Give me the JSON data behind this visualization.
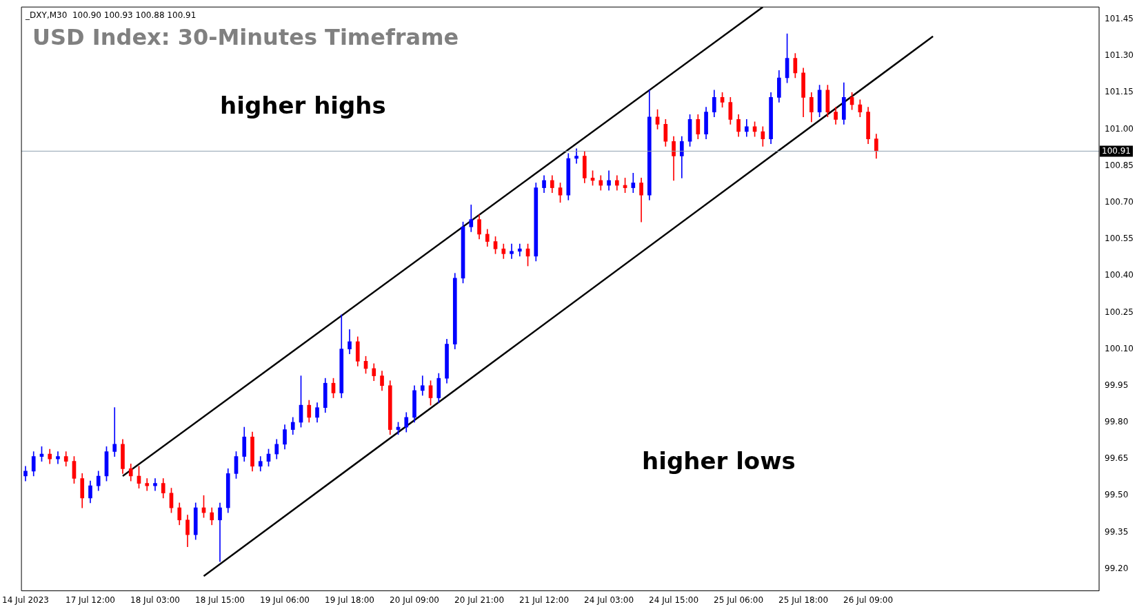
{
  "chart_data": {
    "type": "candlestick",
    "title": "USD Index: 30-Minutes Timeframe",
    "subtitle": "_DXY,M30  100.90 100.93 100.88 100.91",
    "categories": [
      "14 Jul 2023",
      null,
      null,
      null,
      null,
      null,
      null,
      null,
      "17 Jul 12:00",
      null,
      null,
      null,
      null,
      null,
      null,
      null,
      "18 Jul 03:00",
      null,
      null,
      null,
      null,
      null,
      null,
      null,
      "18 Jul 15:00",
      null,
      null,
      null,
      null,
      null,
      null,
      null,
      "19 Jul 06:00",
      null,
      null,
      null,
      null,
      null,
      null,
      null,
      "19 Jul 18:00",
      null,
      null,
      null,
      null,
      null,
      null,
      null,
      "20 Jul 09:00",
      null,
      null,
      null,
      null,
      null,
      null,
      null,
      "20 Jul 21:00",
      null,
      null,
      null,
      null,
      null,
      null,
      null,
      "21 Jul 12:00",
      null,
      null,
      null,
      null,
      null,
      null,
      null,
      "24 Jul 03:00",
      null,
      null,
      null,
      null,
      null,
      null,
      null,
      "24 Jul 15:00",
      null,
      null,
      null,
      null,
      null,
      null,
      null,
      "25 Jul 06:00",
      null,
      null,
      null,
      null,
      null,
      null,
      null,
      "25 Jul 18:00",
      null,
      null,
      null,
      null,
      null,
      null,
      null,
      "26 Jul 09:00",
      null,
      null,
      null,
      null,
      null,
      null,
      null,
      null,
      null,
      null,
      null,
      null,
      null,
      null,
      null,
      null,
      null,
      null,
      null,
      null,
      null,
      null,
      null,
      null,
      null,
      null,
      null,
      null
    ],
    "ohlc": [
      [
        99.58,
        99.62,
        99.56,
        99.6
      ],
      [
        99.6,
        99.68,
        99.58,
        99.66
      ],
      [
        99.66,
        99.7,
        99.64,
        99.67
      ],
      [
        99.67,
        99.69,
        99.63,
        99.65
      ],
      [
        99.65,
        99.68,
        99.63,
        99.66
      ],
      [
        99.66,
        99.68,
        99.62,
        99.64
      ],
      [
        99.64,
        99.66,
        99.55,
        99.57
      ],
      [
        99.57,
        99.59,
        99.45,
        99.49
      ],
      [
        99.49,
        99.56,
        99.47,
        99.54
      ],
      [
        99.54,
        99.6,
        99.52,
        99.58
      ],
      [
        99.58,
        99.7,
        99.56,
        99.68
      ],
      [
        99.68,
        99.86,
        99.66,
        99.71
      ],
      [
        99.71,
        99.73,
        99.59,
        99.61
      ],
      [
        99.61,
        99.63,
        99.56,
        99.58
      ],
      [
        99.58,
        99.62,
        99.53,
        99.55
      ],
      [
        99.55,
        99.57,
        99.52,
        99.54
      ],
      [
        99.54,
        99.57,
        99.52,
        99.55
      ],
      [
        99.55,
        99.57,
        99.49,
        99.51
      ],
      [
        99.51,
        99.53,
        99.43,
        99.45
      ],
      [
        99.45,
        99.47,
        99.38,
        99.4
      ],
      [
        99.4,
        99.42,
        99.29,
        99.34
      ],
      [
        99.34,
        99.47,
        99.32,
        99.45
      ],
      [
        99.45,
        99.5,
        99.41,
        99.43
      ],
      [
        99.43,
        99.45,
        99.38,
        99.4
      ],
      [
        99.4,
        99.47,
        99.23,
        99.45
      ],
      [
        99.45,
        99.61,
        99.43,
        99.59
      ],
      [
        99.59,
        99.68,
        99.57,
        99.66
      ],
      [
        99.66,
        99.78,
        99.64,
        99.74
      ],
      [
        99.74,
        99.76,
        99.6,
        99.62
      ],
      [
        99.62,
        99.66,
        99.6,
        99.64
      ],
      [
        99.64,
        99.69,
        99.62,
        99.67
      ],
      [
        99.67,
        99.73,
        99.65,
        99.71
      ],
      [
        99.71,
        99.79,
        99.69,
        99.77
      ],
      [
        99.77,
        99.82,
        99.75,
        99.8
      ],
      [
        99.8,
        99.99,
        99.78,
        99.87
      ],
      [
        99.87,
        99.89,
        99.8,
        99.82
      ],
      [
        99.82,
        99.88,
        99.8,
        99.86
      ],
      [
        99.86,
        99.98,
        99.84,
        99.96
      ],
      [
        99.96,
        99.98,
        99.9,
        99.92
      ],
      [
        99.92,
        100.24,
        99.9,
        100.1
      ],
      [
        100.1,
        100.18,
        100.08,
        100.13
      ],
      [
        100.13,
        100.15,
        100.03,
        100.05
      ],
      [
        100.05,
        100.07,
        100.0,
        100.02
      ],
      [
        100.02,
        100.04,
        99.97,
        99.99
      ],
      [
        99.99,
        100.01,
        99.93,
        99.95
      ],
      [
        99.95,
        99.97,
        99.75,
        99.77
      ],
      [
        99.77,
        99.8,
        99.75,
        99.78
      ],
      [
        99.78,
        99.84,
        99.76,
        99.82
      ],
      [
        99.82,
        99.95,
        99.8,
        99.93
      ],
      [
        99.93,
        99.99,
        99.91,
        99.95
      ],
      [
        99.95,
        99.97,
        99.87,
        99.9
      ],
      [
        99.9,
        100.0,
        99.88,
        99.98
      ],
      [
        99.98,
        100.14,
        99.96,
        100.12
      ],
      [
        100.12,
        100.41,
        100.1,
        100.39
      ],
      [
        100.39,
        100.62,
        100.37,
        100.6
      ],
      [
        100.6,
        100.69,
        100.58,
        100.63
      ],
      [
        100.63,
        100.65,
        100.55,
        100.57
      ],
      [
        100.57,
        100.59,
        100.52,
        100.54
      ],
      [
        100.54,
        100.56,
        100.49,
        100.51
      ],
      [
        100.51,
        100.53,
        100.47,
        100.49
      ],
      [
        100.49,
        100.53,
        100.47,
        100.5
      ],
      [
        100.5,
        100.53,
        100.48,
        100.51
      ],
      [
        100.51,
        100.53,
        100.44,
        100.48
      ],
      [
        100.48,
        100.78,
        100.46,
        100.76
      ],
      [
        100.76,
        100.81,
        100.74,
        100.79
      ],
      [
        100.79,
        100.81,
        100.74,
        100.76
      ],
      [
        100.76,
        100.78,
        100.7,
        100.73
      ],
      [
        100.73,
        100.9,
        100.71,
        100.88
      ],
      [
        100.88,
        100.92,
        100.86,
        100.89
      ],
      [
        100.89,
        100.91,
        100.78,
        100.8
      ],
      [
        100.8,
        100.83,
        100.77,
        100.79
      ],
      [
        100.79,
        100.81,
        100.75,
        100.77
      ],
      [
        100.77,
        100.83,
        100.75,
        100.79
      ],
      [
        100.79,
        100.81,
        100.75,
        100.77
      ],
      [
        100.77,
        100.8,
        100.74,
        100.76
      ],
      [
        100.76,
        100.82,
        100.74,
        100.78
      ],
      [
        100.78,
        100.8,
        100.62,
        100.73
      ],
      [
        100.73,
        101.16,
        100.71,
        101.05
      ],
      [
        101.05,
        101.08,
        101.0,
        101.02
      ],
      [
        101.02,
        101.04,
        100.93,
        100.95
      ],
      [
        100.95,
        100.97,
        100.79,
        100.89
      ],
      [
        100.89,
        100.97,
        100.8,
        100.95
      ],
      [
        100.95,
        101.06,
        100.93,
        101.04
      ],
      [
        101.04,
        101.06,
        100.96,
        100.98
      ],
      [
        100.98,
        101.09,
        100.96,
        101.07
      ],
      [
        101.07,
        101.16,
        101.05,
        101.13
      ],
      [
        101.13,
        101.15,
        101.09,
        101.11
      ],
      [
        101.11,
        101.13,
        101.02,
        101.04
      ],
      [
        101.04,
        101.06,
        100.97,
        100.99
      ],
      [
        100.99,
        101.04,
        100.97,
        101.01
      ],
      [
        101.01,
        101.03,
        100.97,
        100.99
      ],
      [
        100.99,
        101.01,
        100.93,
        100.96
      ],
      [
        100.96,
        101.15,
        100.94,
        101.13
      ],
      [
        101.13,
        101.24,
        101.11,
        101.21
      ],
      [
        101.21,
        101.39,
        101.19,
        101.29
      ],
      [
        101.29,
        101.31,
        101.21,
        101.23
      ],
      [
        101.23,
        101.25,
        101.05,
        101.13
      ],
      [
        101.13,
        101.15,
        101.03,
        101.07
      ],
      [
        101.07,
        101.18,
        101.05,
        101.16
      ],
      [
        101.16,
        101.18,
        101.05,
        101.07
      ],
      [
        101.07,
        101.09,
        101.02,
        101.04
      ],
      [
        101.04,
        101.19,
        101.02,
        101.13
      ],
      [
        101.13,
        101.15,
        101.08,
        101.1
      ],
      [
        101.1,
        101.12,
        101.05,
        101.07
      ],
      [
        101.07,
        101.09,
        100.94,
        100.96
      ],
      [
        100.96,
        100.98,
        100.88,
        100.91
      ],
      null,
      null,
      null,
      null,
      null,
      null,
      null,
      null,
      null,
      null,
      null,
      null,
      null,
      null,
      null,
      null,
      null,
      null,
      null,
      null,
      null,
      null,
      null,
      null,
      null,
      null,
      null
    ],
    "series": [
      {
        "type": "line",
        "color": "#000000",
        "values": [
          null,
          null,
          null,
          null,
          null,
          null,
          null,
          null,
          null,
          null,
          null,
          null,
          99.58,
          null,
          null,
          null,
          null,
          null,
          null,
          null,
          null,
          null,
          null,
          null,
          null,
          null,
          null,
          null,
          null,
          null,
          null,
          null,
          null,
          null,
          null,
          null,
          null,
          null,
          null,
          null,
          null,
          null,
          null,
          null,
          null,
          null,
          null,
          null,
          null,
          null,
          null,
          null,
          null,
          null,
          null,
          null,
          null,
          null,
          null,
          null,
          null,
          null,
          null,
          null,
          null,
          null,
          null,
          null,
          null,
          null,
          null,
          null,
          null,
          null,
          null,
          null,
          null,
          null,
          null,
          null,
          null,
          null,
          null,
          null,
          null,
          null,
          null,
          null,
          null,
          null,
          null,
          101.5,
          null,
          null,
          null,
          null,
          null,
          null,
          null,
          null,
          null,
          null,
          null,
          null,
          null,
          null,
          null,
          null,
          null,
          null,
          null,
          null,
          null,
          null,
          null,
          null,
          null,
          null,
          null,
          null,
          null,
          null,
          null,
          null,
          null,
          null,
          null,
          null,
          null,
          null,
          null,
          null,
          null
        ]
      },
      {
        "type": "line",
        "color": "#000000",
        "values": [
          null,
          null,
          null,
          null,
          null,
          null,
          null,
          null,
          null,
          null,
          null,
          null,
          null,
          null,
          null,
          null,
          null,
          null,
          null,
          null,
          null,
          null,
          99.17,
          null,
          null,
          null,
          null,
          null,
          null,
          null,
          null,
          null,
          null,
          null,
          null,
          null,
          null,
          null,
          null,
          null,
          null,
          null,
          null,
          null,
          null,
          null,
          null,
          null,
          null,
          null,
          null,
          null,
          null,
          null,
          null,
          null,
          null,
          null,
          null,
          null,
          null,
          null,
          null,
          null,
          null,
          null,
          null,
          null,
          null,
          null,
          null,
          null,
          null,
          null,
          null,
          null,
          null,
          null,
          null,
          null,
          null,
          null,
          null,
          null,
          null,
          null,
          null,
          null,
          null,
          null,
          null,
          null,
          null,
          null,
          null,
          null,
          null,
          null,
          null,
          null,
          null,
          null,
          null,
          null,
          null,
          null,
          null,
          null,
          null,
          null,
          null,
          null,
          101.38,
          null,
          null,
          null,
          null,
          null,
          null,
          null,
          null,
          null,
          null,
          null,
          null,
          null,
          null,
          null,
          null,
          null,
          null,
          null,
          null
        ]
      }
    ],
    "ylim": [
      99.11,
      101.5
    ],
    "yticks": [
      {
        "value": 99.2,
        "label": "99.20"
      },
      {
        "value": 99.35,
        "label": "99.35"
      },
      {
        "value": 99.5,
        "label": "99.50"
      },
      {
        "value": 99.65,
        "label": "99.65"
      },
      {
        "value": 99.8,
        "label": "99.80"
      },
      {
        "value": 99.95,
        "label": "99.95"
      },
      {
        "value": 100.1,
        "label": "100.10"
      },
      {
        "value": 100.25,
        "label": "100.25"
      },
      {
        "value": 100.4,
        "label": "100.40"
      },
      {
        "value": 100.55,
        "label": "100.55"
      },
      {
        "value": 100.7,
        "label": "100.70"
      },
      {
        "value": 100.85,
        "label": "100.85"
      },
      {
        "value": 101,
        "label": "101.00"
      },
      {
        "value": 101.15,
        "label": "101.15"
      },
      {
        "value": 101.3,
        "label": "101.30"
      },
      {
        "value": 101.45,
        "label": "101.45"
      }
    ],
    "ref_lines": [
      {
        "axis": "y",
        "value": 100.91,
        "label": "100.91",
        "color": "#8fa0b0"
      }
    ],
    "annotations": [
      "higher highs",
      "higher lows"
    ]
  }
}
